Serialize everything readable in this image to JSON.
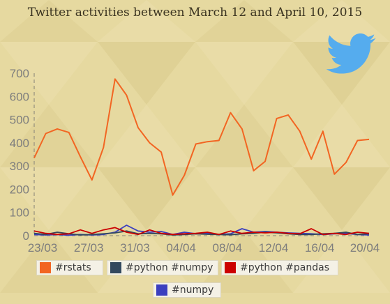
{
  "chart_data": {
    "type": "line",
    "title": "Twitter activities between March 12 and April 10, 2015",
    "xlabel": "",
    "ylabel": "",
    "ylim": [
      0,
      700
    ],
    "yticks": [
      "0",
      "100",
      "200",
      "300",
      "400",
      "500",
      "600",
      "700"
    ],
    "xticks": [
      "23/03",
      "27/03",
      "31/03",
      "04/04",
      "08/04",
      "12/04",
      "16/04",
      "20/04"
    ],
    "grid": false,
    "legend_position": "bottom",
    "series": [
      {
        "name": "#rstats",
        "color": "#f26522",
        "values": [
          335,
          440,
          460,
          445,
          340,
          240,
          380,
          675,
          605,
          465,
          400,
          360,
          175,
          260,
          395,
          405,
          410,
          530,
          460,
          280,
          320,
          505,
          520,
          450,
          330,
          450,
          265,
          315,
          410,
          415
        ]
      },
      {
        "name": "#python #numpy",
        "color": "#34495e",
        "values": [
          10,
          5,
          15,
          8,
          3,
          5,
          8,
          12,
          20,
          8,
          10,
          8,
          3,
          5,
          8,
          6,
          5,
          4,
          8,
          10,
          15,
          12,
          8,
          5,
          5,
          8,
          10,
          15,
          5,
          8
        ]
      },
      {
        "name": "#python #pandas",
        "color": "#cc0000",
        "values": [
          20,
          10,
          5,
          8,
          25,
          10,
          25,
          35,
          15,
          5,
          25,
          10,
          5,
          8,
          10,
          15,
          5,
          20,
          10,
          15,
          12,
          15,
          10,
          8,
          30,
          5,
          10,
          5,
          15,
          10
        ]
      },
      {
        "name": "#numpy",
        "color": "#3b3fbf",
        "values": [
          5,
          3,
          5,
          2,
          5,
          3,
          5,
          15,
          45,
          20,
          15,
          18,
          5,
          15,
          8,
          10,
          5,
          8,
          30,
          15,
          18,
          15,
          12,
          10,
          8,
          5,
          8,
          10,
          5,
          3
        ]
      }
    ]
  },
  "logo_icon": "twitter-bird-icon"
}
